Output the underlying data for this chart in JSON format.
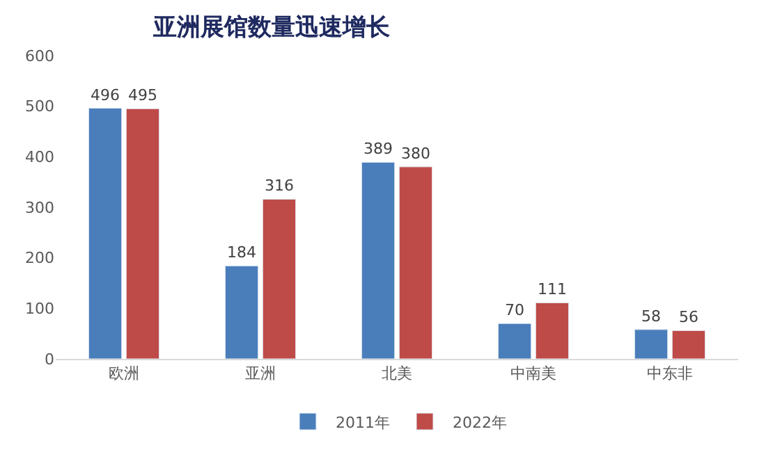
{
  "chart_data": {
    "type": "bar",
    "title": "亚洲展馆数量迅速增长",
    "categories": [
      "欧洲",
      "亚洲",
      "北美",
      "中南美",
      "中东非"
    ],
    "series": [
      {
        "name": "2011年",
        "color": "#4a7ebb",
        "values": [
          496,
          184,
          389,
          70,
          58
        ]
      },
      {
        "name": "2022年",
        "color": "#be4b48",
        "values": [
          495,
          316,
          380,
          111,
          56
        ]
      }
    ],
    "ylim": [
      0,
      600
    ],
    "yticks": [
      0,
      100,
      200,
      300,
      400,
      500,
      600
    ],
    "legend": "bottom",
    "data_labels": true
  }
}
